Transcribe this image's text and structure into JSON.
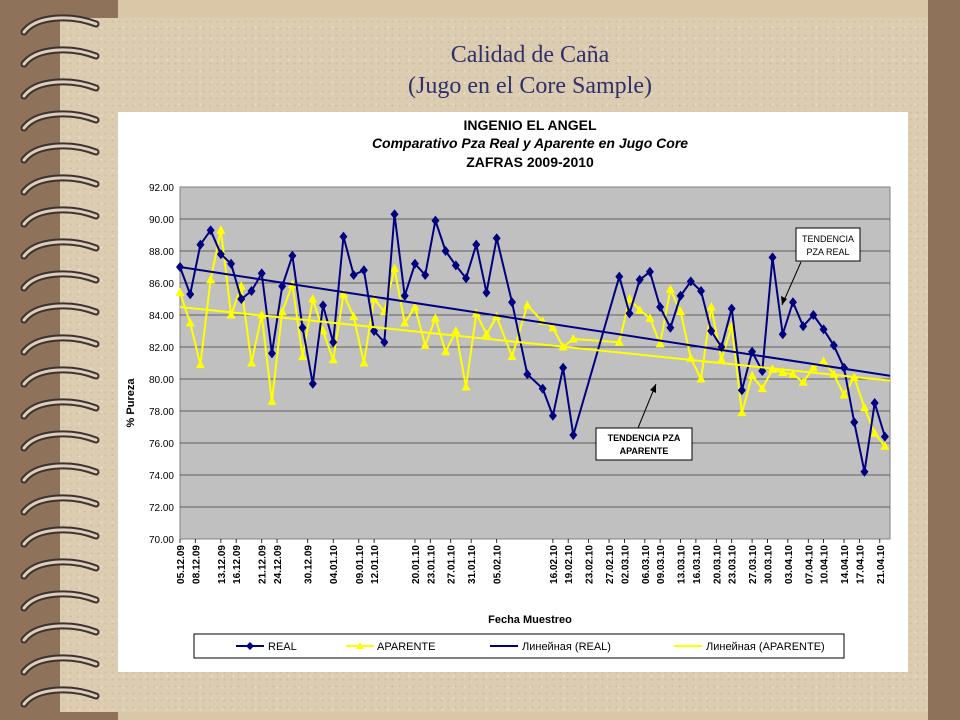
{
  "slide": {
    "title_line1": "Calidad de Caña",
    "title_line2": "(Jugo en el Core Sample)"
  },
  "colors": {
    "background": "#d9c7a8",
    "plot_area": "#c0c0c0",
    "real": "#000080",
    "aparente": "#ffff00",
    "trend_real": "#000080",
    "trend_aparente": "#ffff00"
  },
  "chart_data": {
    "type": "line",
    "title": "INGENIO EL ANGEL",
    "subtitle": "Comparativo Pza Real y Aparente en Jugo Core",
    "subtitle2": "ZAFRAS 2009-2010",
    "xlabel": "Fecha Muestreo",
    "ylabel": "% Pureza",
    "ylim": [
      70,
      92
    ],
    "yticks": [
      "70.00",
      "72.00",
      "74.00",
      "76.00",
      "78.00",
      "80.00",
      "82.00",
      "84.00",
      "86.00",
      "88.00",
      "90.00",
      "92.00"
    ],
    "xlim": [
      "2009-12-05",
      "2010-04-23"
    ],
    "xticks": [
      "05.12.09",
      "08.12.09",
      "13.12.09",
      "16.12.09",
      "21.12.09",
      "24.12.09",
      "30.12.09",
      "04.01.10",
      "09.01.10",
      "12.01.10",
      "20.01.10",
      "23.01.10",
      "27.01.10",
      "31.01.10",
      "05.02.10",
      "16.02.10",
      "19.02.10",
      "23.02.10",
      "27.02.10",
      "02.03.10",
      "06.03.10",
      "09.03.10",
      "13.03.10",
      "16.03.10",
      "20.03.10",
      "23.03.10",
      "27.03.10",
      "30.03.10",
      "03.04.10",
      "07.04.10",
      "10.04.10",
      "14.04.10",
      "17.04.10",
      "21.04.10"
    ],
    "grid": true,
    "legend_position": "bottom",
    "series": [
      {
        "name": "REAL",
        "marker": "diamond",
        "x": [
          "2009-12-05",
          "2009-12-07",
          "2009-12-09",
          "2009-12-11",
          "2009-12-13",
          "2009-12-15",
          "2009-12-17",
          "2009-12-19",
          "2009-12-21",
          "2009-12-23",
          "2009-12-25",
          "2009-12-27",
          "2009-12-29",
          "2009-12-31",
          "2010-01-02",
          "2010-01-04",
          "2010-01-06",
          "2010-01-08",
          "2010-01-10",
          "2010-01-12",
          "2010-01-14",
          "2010-01-16",
          "2010-01-18",
          "2010-01-20",
          "2010-01-22",
          "2010-01-24",
          "2010-01-26",
          "2010-01-28",
          "2010-01-30",
          "2010-02-01",
          "2010-02-03",
          "2010-02-05",
          "2010-02-08",
          "2010-02-11",
          "2010-02-14",
          "2010-02-16",
          "2010-02-18",
          "2010-02-20",
          "2010-03-01",
          "2010-03-03",
          "2010-03-05",
          "2010-03-07",
          "2010-03-09",
          "2010-03-11",
          "2010-03-13",
          "2010-03-15",
          "2010-03-17",
          "2010-03-19",
          "2010-03-21",
          "2010-03-23",
          "2010-03-25",
          "2010-03-27",
          "2010-03-29",
          "2010-03-31",
          "2010-04-02",
          "2010-04-04",
          "2010-04-06",
          "2010-04-08",
          "2010-04-10",
          "2010-04-12",
          "2010-04-14",
          "2010-04-16",
          "2010-04-18",
          "2010-04-20",
          "2010-04-22"
        ],
        "values": [
          87.0,
          85.3,
          88.4,
          89.3,
          87.8,
          87.2,
          85.0,
          85.5,
          86.6,
          81.6,
          85.8,
          87.7,
          83.2,
          79.7,
          84.6,
          82.3,
          88.9,
          86.5,
          86.8,
          83.0,
          82.3,
          90.3,
          85.2,
          87.2,
          86.5,
          89.9,
          88.0,
          87.1,
          86.3,
          88.4,
          85.4,
          88.8,
          84.8,
          80.3,
          79.4,
          77.7,
          80.7,
          76.5,
          86.4,
          84.1,
          86.2,
          86.7,
          84.5,
          83.2,
          85.2,
          86.1,
          85.5,
          83.0,
          82.0,
          84.4,
          79.3,
          81.7,
          80.5,
          87.6,
          82.8,
          84.8,
          83.3,
          84.0,
          83.1,
          82.1,
          80.7,
          77.3,
          74.2,
          78.5,
          76.4
        ]
      },
      {
        "name": "APARENTE",
        "marker": "triangle",
        "x": [
          "2009-12-05",
          "2009-12-07",
          "2009-12-09",
          "2009-12-11",
          "2009-12-13",
          "2009-12-15",
          "2009-12-17",
          "2009-12-19",
          "2009-12-21",
          "2009-12-23",
          "2009-12-25",
          "2009-12-27",
          "2009-12-29",
          "2009-12-31",
          "2010-01-02",
          "2010-01-04",
          "2010-01-06",
          "2010-01-08",
          "2010-01-10",
          "2010-01-12",
          "2010-01-14",
          "2010-01-16",
          "2010-01-18",
          "2010-01-20",
          "2010-01-22",
          "2010-01-24",
          "2010-01-26",
          "2010-01-28",
          "2010-01-30",
          "2010-02-01",
          "2010-02-03",
          "2010-02-05",
          "2010-02-08",
          "2010-02-11",
          "2010-02-14",
          "2010-02-16",
          "2010-02-18",
          "2010-02-20",
          "2010-03-01",
          "2010-03-03",
          "2010-03-05",
          "2010-03-07",
          "2010-03-09",
          "2010-03-11",
          "2010-03-13",
          "2010-03-15",
          "2010-03-17",
          "2010-03-19",
          "2010-03-21",
          "2010-03-23",
          "2010-03-25",
          "2010-03-27",
          "2010-03-29",
          "2010-03-31",
          "2010-04-02",
          "2010-04-04",
          "2010-04-06",
          "2010-04-08",
          "2010-04-10",
          "2010-04-12",
          "2010-04-14",
          "2010-04-16",
          "2010-04-18",
          "2010-04-20",
          "2010-04-22"
        ],
        "values": [
          85.4,
          83.5,
          80.9,
          86.2,
          89.3,
          84.0,
          85.8,
          81.0,
          84.0,
          78.6,
          84.2,
          85.9,
          81.4,
          85.0,
          83.0,
          81.2,
          85.3,
          83.9,
          81.0,
          85.0,
          84.2,
          86.9,
          83.5,
          84.5,
          82.1,
          83.8,
          81.7,
          83.0,
          79.5,
          84.1,
          82.8,
          83.9,
          81.4,
          84.6,
          83.6,
          83.2,
          82.0,
          82.5,
          82.3,
          85.0,
          84.3,
          83.8,
          82.2,
          85.6,
          84.2,
          81.3,
          80.0,
          84.5,
          81.2,
          83.3,
          77.9,
          80.2,
          79.4,
          80.6,
          80.4,
          80.3,
          79.8,
          80.7,
          81.1,
          80.3,
          79.0,
          80.1,
          78.2,
          76.6,
          75.8
        ]
      },
      {
        "name": "Линейная (REAL)",
        "kind": "trendline",
        "x": [
          "2009-12-05",
          "2010-04-23"
        ],
        "values": [
          87.0,
          80.2
        ]
      },
      {
        "name": "Линейная (APARENTE)",
        "kind": "trendline",
        "x": [
          "2009-12-05",
          "2010-04-23"
        ],
        "values": [
          84.5,
          79.9
        ]
      }
    ],
    "annotations": [
      {
        "text": "TENDENCIA PZA REAL",
        "points_to": "Линейная (REAL)"
      },
      {
        "text": "TENDENCIA PZA APARENTE",
        "points_to": "Линейная (APARENTE)"
      }
    ]
  }
}
